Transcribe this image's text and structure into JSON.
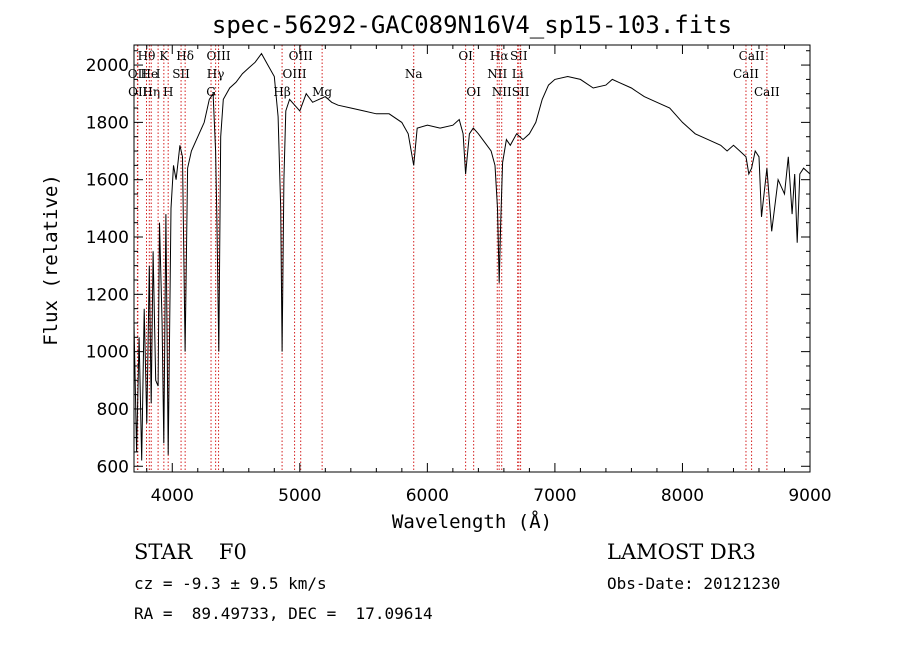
{
  "chart_data": {
    "type": "line",
    "title": "spec-56292-GAC089N16V4_sp15-103.fits",
    "xlabel": "Wavelength (Å)",
    "ylabel": "Flux (relative)",
    "xlim": [
      3700,
      9000
    ],
    "ylim": [
      580,
      2070
    ],
    "xticks": [
      4000,
      5000,
      6000,
      7000,
      8000,
      9000
    ],
    "yticks": [
      600,
      800,
      1000,
      1200,
      1400,
      1600,
      1800,
      2000
    ],
    "grid": false,
    "series": [
      {
        "x": [
          3700,
          3720,
          3740,
          3760,
          3780,
          3800,
          3820,
          3835,
          3850,
          3870,
          3889,
          3900,
          3920,
          3934,
          3950,
          3968,
          3990,
          4010,
          4030,
          4060,
          4080,
          4101,
          4120,
          4150,
          4200,
          4250,
          4290,
          4320,
          4340,
          4350,
          4365,
          4380,
          4400,
          4450,
          4500,
          4550,
          4600,
          4650,
          4700,
          4750,
          4800,
          4830,
          4850,
          4861,
          4875,
          4890,
          4920,
          4960,
          5000,
          5050,
          5100,
          5150,
          5200,
          5250,
          5300,
          5400,
          5500,
          5600,
          5700,
          5800,
          5850,
          5893,
          5920,
          6000,
          6100,
          6200,
          6250,
          6280,
          6300,
          6330,
          6360,
          6400,
          6450,
          6500,
          6530,
          6550,
          6563,
          6575,
          6590,
          6620,
          6650,
          6700,
          6750,
          6800,
          6850,
          6900,
          6950,
          7000,
          7100,
          7200,
          7300,
          7400,
          7450,
          7500,
          7600,
          7700,
          7800,
          7900,
          8000,
          8100,
          8200,
          8300,
          8350,
          8400,
          8450,
          8498,
          8520,
          8542,
          8570,
          8600,
          8620,
          8662,
          8700,
          8750,
          8800,
          8830,
          8860,
          8880,
          8900,
          8920,
          8950,
          9000
        ],
        "y": [
          1100,
          650,
          1050,
          620,
          1150,
          750,
          1300,
          820,
          1350,
          900,
          880,
          1450,
          1100,
          680,
          1480,
          640,
          1500,
          1650,
          1600,
          1720,
          1680,
          1000,
          1640,
          1700,
          1750,
          1800,
          1880,
          1900,
          1700,
          1460,
          1000,
          1750,
          1880,
          1920,
          1940,
          1970,
          1990,
          2010,
          2040,
          2000,
          1960,
          1820,
          1500,
          1000,
          1600,
          1840,
          1880,
          1860,
          1840,
          1900,
          1870,
          1880,
          1890,
          1870,
          1860,
          1850,
          1840,
          1830,
          1830,
          1800,
          1760,
          1650,
          1780,
          1790,
          1780,
          1790,
          1810,
          1760,
          1620,
          1760,
          1780,
          1760,
          1730,
          1700,
          1650,
          1500,
          1240,
          1450,
          1660,
          1740,
          1720,
          1760,
          1740,
          1760,
          1800,
          1880,
          1930,
          1950,
          1960,
          1950,
          1920,
          1930,
          1950,
          1940,
          1920,
          1890,
          1870,
          1850,
          1800,
          1760,
          1740,
          1720,
          1700,
          1720,
          1700,
          1680,
          1620,
          1640,
          1700,
          1680,
          1470,
          1640,
          1420,
          1600,
          1550,
          1680,
          1480,
          1620,
          1380,
          1620,
          1640,
          1620
        ]
      }
    ],
    "line_markers": [
      {
        "label": "Hθ",
        "x": 3798,
        "row": 1
      },
      {
        "label": "OII",
        "x": 3727,
        "row": 2
      },
      {
        "label": "He",
        "x": 3820,
        "row": 2
      },
      {
        "label": "OII",
        "x": 3730,
        "row": 3
      },
      {
        "label": "Hη",
        "x": 3835,
        "row": 3
      },
      {
        "label": "K",
        "x": 3934,
        "row": 1
      },
      {
        "label": "I",
        "x": 3889,
        "row": 2
      },
      {
        "label": "H",
        "x": 3968,
        "row": 3
      },
      {
        "label": "Hδ",
        "x": 4101,
        "row": 1
      },
      {
        "label": "SII",
        "x": 4069,
        "row": 2
      },
      {
        "label": "OIII",
        "x": 4363,
        "row": 1
      },
      {
        "label": "Hγ",
        "x": 4340,
        "row": 2
      },
      {
        "label": "G",
        "x": 4304,
        "row": 3
      },
      {
        "label": "OIII",
        "x": 5007,
        "row": 1
      },
      {
        "label": "OIII",
        "x": 4959,
        "row": 2
      },
      {
        "label": "Hβ",
        "x": 4861,
        "row": 3
      },
      {
        "label": "Mg",
        "x": 5175,
        "row": 3
      },
      {
        "label": "Na",
        "x": 5893,
        "row": 2
      },
      {
        "label": "OI",
        "x": 6300,
        "row": 1
      },
      {
        "label": "OI",
        "x": 6363,
        "row": 3
      },
      {
        "label": "Hα",
        "x": 6563,
        "row": 1
      },
      {
        "label": "NII",
        "x": 6548,
        "row": 2
      },
      {
        "label": "NII",
        "x": 6583,
        "row": 3
      },
      {
        "label": "SII",
        "x": 6717,
        "row": 1
      },
      {
        "label": "Li",
        "x": 6708,
        "row": 2
      },
      {
        "label": "SII",
        "x": 6731,
        "row": 3
      },
      {
        "label": "CaII",
        "x": 8542,
        "row": 1
      },
      {
        "label": "CaII",
        "x": 8498,
        "row": 2
      },
      {
        "label": "CaII",
        "x": 8662,
        "row": 3
      }
    ]
  },
  "info": {
    "class_label": "STAR    F0",
    "survey": "LAMOST DR3",
    "cz": "cz = -9.3 ± 9.5 km/s",
    "obs_date": "Obs-Date: 20121230",
    "coords": "RA =  89.49733, DEC =  17.09614"
  }
}
